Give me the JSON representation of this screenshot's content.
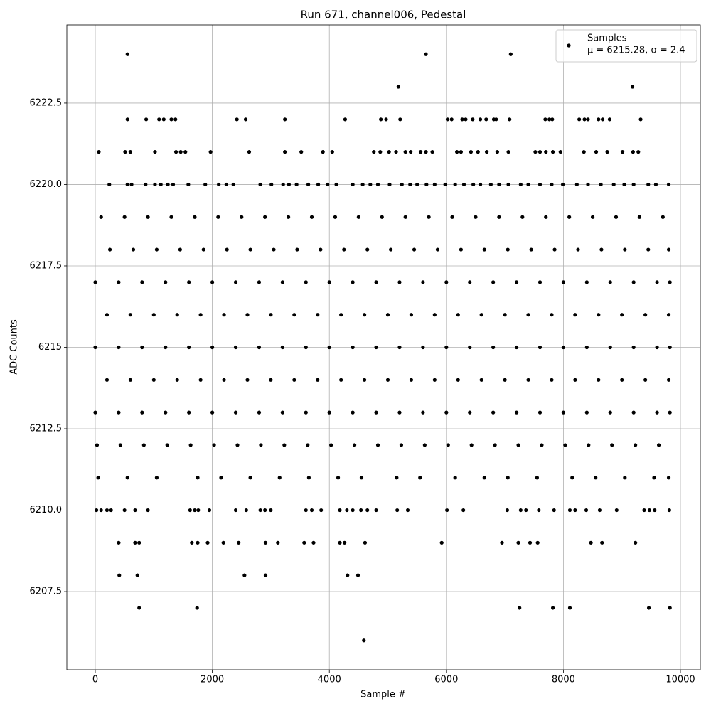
{
  "chart_data": {
    "type": "scatter",
    "title": "Run 671, channel006, Pedestal",
    "xlabel": "Sample #",
    "ylabel": "ADC Counts",
    "legend_text": "μ = 6215.28, σ = 2.4",
    "legend": "upper right",
    "grid": true,
    "xlim": [
      -486,
      10340
    ],
    "xticks": [
      0,
      2000,
      4000,
      6000,
      8000,
      10000
    ],
    "ylim": [
      6205.1,
      6224.9
    ],
    "yticks": [
      6207.5,
      {
        "value": 6210,
        "label": "6210.0"
      },
      6212.5,
      6215,
      6217.5,
      {
        "value": 6220,
        "label": "6220.0"
      },
      6222.5
    ],
    "series": [
      {
        "name": "Samples",
        "color": "#000000",
        "x": [
          550,
          5650,
          7100,
          5180,
          9180,
          550,
          870,
          1090,
          1170,
          1300,
          1370,
          2420,
          2570,
          3240,
          4270,
          4880,
          4970,
          5210,
          6020,
          6090,
          6270,
          6330,
          6450,
          6580,
          6680,
          6810,
          6850,
          7080,
          7690,
          7760,
          7810,
          8270,
          8360,
          8420,
          8600,
          8670,
          8790,
          9320,
          60,
          510,
          600,
          1020,
          1380,
          1460,
          1540,
          1970,
          2630,
          3240,
          3520,
          3890,
          4050,
          4760,
          4870,
          5020,
          5140,
          5300,
          5390,
          5560,
          5650,
          5760,
          6180,
          6250,
          6420,
          6540,
          6690,
          6870,
          7060,
          7520,
          7600,
          7700,
          7820,
          7950,
          8350,
          8560,
          8750,
          9010,
          9190,
          9280,
          240,
          550,
          620,
          860,
          1020,
          1120,
          1240,
          1330,
          1590,
          1880,
          2110,
          2240,
          2360,
          2820,
          3010,
          3210,
          3310,
          3440,
          3640,
          3810,
          3970,
          4120,
          4400,
          4570,
          4700,
          4830,
          5030,
          5240,
          5380,
          5500,
          5660,
          5800,
          5980,
          6150,
          6300,
          6460,
          6580,
          6760,
          6900,
          7060,
          7270,
          7400,
          7600,
          7800,
          7990,
          8230,
          8420,
          8640,
          8860,
          9040,
          9200,
          9450,
          9580,
          9800,
          100,
          500,
          900,
          1300,
          1700,
          2100,
          2500,
          2900,
          3300,
          3700,
          4100,
          4500,
          4900,
          5300,
          5700,
          6100,
          6500,
          6900,
          7300,
          7700,
          8100,
          8500,
          8900,
          9300,
          9700,
          250,
          650,
          1050,
          1450,
          1850,
          2250,
          2650,
          3050,
          3450,
          3850,
          4250,
          4650,
          5050,
          5450,
          5850,
          6250,
          6650,
          7050,
          7450,
          7850,
          8250,
          8650,
          9050,
          9450,
          9800,
          0,
          400,
          800,
          1200,
          1600,
          2000,
          2400,
          2800,
          3200,
          3600,
          4000,
          4400,
          4800,
          5200,
          5600,
          6000,
          6400,
          6800,
          7200,
          7600,
          8000,
          8400,
          8800,
          9200,
          9600,
          9820,
          200,
          600,
          1000,
          1400,
          1800,
          2200,
          2600,
          3000,
          3400,
          3800,
          4200,
          4600,
          5000,
          5400,
          5800,
          6200,
          6600,
          7000,
          7400,
          7800,
          8200,
          8600,
          9000,
          9400,
          9800,
          0,
          400,
          800,
          1200,
          1600,
          2000,
          2400,
          2800,
          3200,
          3600,
          4000,
          4400,
          4800,
          5200,
          5600,
          6000,
          6400,
          6800,
          7200,
          7600,
          8000,
          8400,
          8800,
          9200,
          9600,
          9820,
          200,
          600,
          1000,
          1400,
          1800,
          2200,
          2600,
          3000,
          3400,
          3800,
          4200,
          4600,
          5000,
          5400,
          5800,
          6200,
          6600,
          7000,
          7400,
          7800,
          8200,
          8600,
          9000,
          9400,
          9800,
          0,
          400,
          800,
          1200,
          1600,
          2000,
          2400,
          2800,
          3200,
          3600,
          4000,
          4400,
          4800,
          5200,
          5600,
          6000,
          6400,
          6800,
          7200,
          7600,
          8000,
          8400,
          8800,
          9200,
          9600,
          9820,
          30,
          430,
          830,
          1230,
          1630,
          2030,
          2430,
          2830,
          3230,
          3630,
          4030,
          4430,
          4830,
          5230,
          5630,
          6030,
          6430,
          6830,
          7230,
          7630,
          8030,
          8430,
          8830,
          9230,
          9630,
          50,
          550,
          1050,
          1750,
          2150,
          2650,
          3150,
          3650,
          4150,
          4550,
          5150,
          5550,
          6150,
          6650,
          7050,
          7550,
          8150,
          8550,
          9050,
          9550,
          9800,
          20,
          100,
          200,
          270,
          500,
          680,
          900,
          1620,
          1700,
          1760,
          1950,
          2400,
          2580,
          2820,
          2900,
          3000,
          3600,
          3700,
          3860,
          4180,
          4300,
          4400,
          4540,
          4650,
          4800,
          5160,
          5340,
          6010,
          6290,
          7040,
          7270,
          7360,
          7580,
          7840,
          8110,
          8200,
          8390,
          8620,
          8910,
          9380,
          9470,
          9560,
          9810,
          400,
          680,
          750,
          1650,
          1750,
          1920,
          2190,
          2450,
          2910,
          3120,
          3570,
          3730,
          4180,
          4260,
          4610,
          5920,
          6950,
          7230,
          7430,
          7560,
          8470,
          8660,
          9230,
          410,
          720,
          2550,
          2910,
          4310,
          4490,
          750,
          1740,
          7250,
          7820,
          8110,
          9460,
          9820,
          4590
        ],
        "values": [
          6224,
          6224,
          6224,
          6223,
          6223,
          6222,
          6222,
          6222,
          6222,
          6222,
          6222,
          6222,
          6222,
          6222,
          6222,
          6222,
          6222,
          6222,
          6222,
          6222,
          6222,
          6222,
          6222,
          6222,
          6222,
          6222,
          6222,
          6222,
          6222,
          6222,
          6222,
          6222,
          6222,
          6222,
          6222,
          6222,
          6222,
          6222,
          6221,
          6221,
          6221,
          6221,
          6221,
          6221,
          6221,
          6221,
          6221,
          6221,
          6221,
          6221,
          6221,
          6221,
          6221,
          6221,
          6221,
          6221,
          6221,
          6221,
          6221,
          6221,
          6221,
          6221,
          6221,
          6221,
          6221,
          6221,
          6221,
          6221,
          6221,
          6221,
          6221,
          6221,
          6221,
          6221,
          6221,
          6221,
          6221,
          6221,
          6220,
          6220,
          6220,
          6220,
          6220,
          6220,
          6220,
          6220,
          6220,
          6220,
          6220,
          6220,
          6220,
          6220,
          6220,
          6220,
          6220,
          6220,
          6220,
          6220,
          6220,
          6220,
          6220,
          6220,
          6220,
          6220,
          6220,
          6220,
          6220,
          6220,
          6220,
          6220,
          6220,
          6220,
          6220,
          6220,
          6220,
          6220,
          6220,
          6220,
          6220,
          6220,
          6220,
          6220,
          6220,
          6220,
          6220,
          6220,
          6220,
          6220,
          6220,
          6220,
          6220,
          6220,
          6219,
          6219,
          6219,
          6219,
          6219,
          6219,
          6219,
          6219,
          6219,
          6219,
          6219,
          6219,
          6219,
          6219,
          6219,
          6219,
          6219,
          6219,
          6219,
          6219,
          6219,
          6219,
          6219,
          6219,
          6219,
          6218,
          6218,
          6218,
          6218,
          6218,
          6218,
          6218,
          6218,
          6218,
          6218,
          6218,
          6218,
          6218,
          6218,
          6218,
          6218,
          6218,
          6218,
          6218,
          6218,
          6218,
          6218,
          6218,
          6218,
          6218,
          6217,
          6217,
          6217,
          6217,
          6217,
          6217,
          6217,
          6217,
          6217,
          6217,
          6217,
          6217,
          6217,
          6217,
          6217,
          6217,
          6217,
          6217,
          6217,
          6217,
          6217,
          6217,
          6217,
          6217,
          6217,
          6217,
          6216,
          6216,
          6216,
          6216,
          6216,
          6216,
          6216,
          6216,
          6216,
          6216,
          6216,
          6216,
          6216,
          6216,
          6216,
          6216,
          6216,
          6216,
          6216,
          6216,
          6216,
          6216,
          6216,
          6216,
          6216,
          6215,
          6215,
          6215,
          6215,
          6215,
          6215,
          6215,
          6215,
          6215,
          6215,
          6215,
          6215,
          6215,
          6215,
          6215,
          6215,
          6215,
          6215,
          6215,
          6215,
          6215,
          6215,
          6215,
          6215,
          6215,
          6215,
          6214,
          6214,
          6214,
          6214,
          6214,
          6214,
          6214,
          6214,
          6214,
          6214,
          6214,
          6214,
          6214,
          6214,
          6214,
          6214,
          6214,
          6214,
          6214,
          6214,
          6214,
          6214,
          6214,
          6214,
          6214,
          6213,
          6213,
          6213,
          6213,
          6213,
          6213,
          6213,
          6213,
          6213,
          6213,
          6213,
          6213,
          6213,
          6213,
          6213,
          6213,
          6213,
          6213,
          6213,
          6213,
          6213,
          6213,
          6213,
          6213,
          6213,
          6213,
          6212,
          6212,
          6212,
          6212,
          6212,
          6212,
          6212,
          6212,
          6212,
          6212,
          6212,
          6212,
          6212,
          6212,
          6212,
          6212,
          6212,
          6212,
          6212,
          6212,
          6212,
          6212,
          6212,
          6212,
          6212,
          6211,
          6211,
          6211,
          6211,
          6211,
          6211,
          6211,
          6211,
          6211,
          6211,
          6211,
          6211,
          6211,
          6211,
          6211,
          6211,
          6211,
          6211,
          6211,
          6211,
          6211,
          6210,
          6210,
          6210,
          6210,
          6210,
          6210,
          6210,
          6210,
          6210,
          6210,
          6210,
          6210,
          6210,
          6210,
          6210,
          6210,
          6210,
          6210,
          6210,
          6210,
          6210,
          6210,
          6210,
          6210,
          6210,
          6210,
          6210,
          6210,
          6210,
          6210,
          6210,
          6210,
          6210,
          6210,
          6210,
          6210,
          6210,
          6210,
          6210,
          6210,
          6210,
          6210,
          6210,
          6209,
          6209,
          6209,
          6209,
          6209,
          6209,
          6209,
          6209,
          6209,
          6209,
          6209,
          6209,
          6209,
          6209,
          6209,
          6209,
          6209,
          6209,
          6209,
          6209,
          6209,
          6209,
          6209,
          6208,
          6208,
          6208,
          6208,
          6208,
          6208,
          6207,
          6207,
          6207,
          6207,
          6207,
          6207,
          6207,
          6206
        ]
      }
    ]
  }
}
